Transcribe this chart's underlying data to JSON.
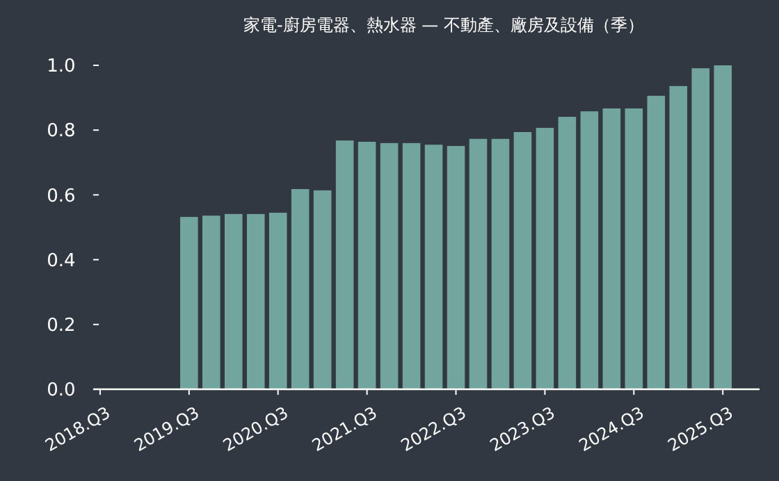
{
  "chart_data": {
    "type": "bar",
    "title": "家電-廚房電器、熱水器 — 不動產、廠房及設備（季）",
    "categories": [
      "2018.Q3",
      null,
      null,
      null,
      "2019.Q3",
      null,
      null,
      null,
      "2020.Q3",
      null,
      null,
      null,
      "2021.Q3",
      null,
      null,
      null,
      "2022.Q3",
      null,
      null,
      null,
      "2023.Q3",
      null,
      null,
      null,
      "2024.Q3",
      null,
      null,
      null,
      "2025.Q3"
    ],
    "values": [
      null,
      null,
      null,
      null,
      0.532,
      0.536,
      0.541,
      0.541,
      0.545,
      0.618,
      0.614,
      0.768,
      0.764,
      0.76,
      0.76,
      0.755,
      0.751,
      0.773,
      0.773,
      0.794,
      0.807,
      0.841,
      0.858,
      0.867,
      0.867,
      0.906,
      0.936,
      0.991,
      1.0
    ],
    "color": "#71a59e",
    "ylim": [
      0,
      1
    ],
    "yticks": [
      {
        "value": 0,
        "label": "0.0"
      },
      {
        "value": 0.2,
        "label": "0.2"
      },
      {
        "value": 0.4,
        "label": "0.4"
      },
      {
        "value": 0.6,
        "label": "0.6"
      },
      {
        "value": 0.8,
        "label": "0.8"
      },
      {
        "value": 1,
        "label": "1.0"
      }
    ],
    "grid": false
  }
}
